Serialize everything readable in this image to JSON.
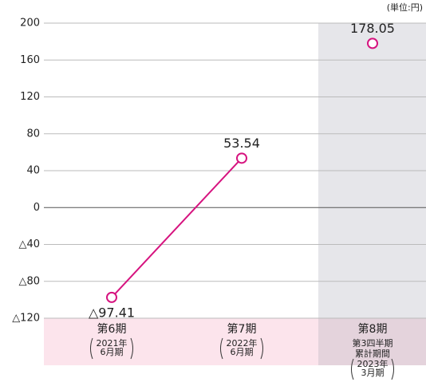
{
  "chart_data": {
    "type": "line",
    "unit": "(単位:円)",
    "categories": [
      "第6期",
      "第7期",
      "第8期"
    ],
    "category_details": [
      [
        "2021年",
        "6月期"
      ],
      [
        "2022年",
        "6月期"
      ],
      [
        "第3四半期",
        "累計期間",
        "2023年",
        "3月期"
      ]
    ],
    "shaded_categories": [
      "第8期"
    ],
    "values": [
      -97.41,
      53.54,
      178.05
    ],
    "value_labels": [
      "△97.41",
      "53.54",
      "178.05"
    ],
    "color": "#d6137f",
    "ylim": [
      -120,
      200
    ],
    "yticks": [
      {
        "value": -120,
        "label": "△120"
      },
      {
        "value": -80,
        "label": "△80"
      },
      {
        "value": -40,
        "label": "△40"
      },
      0,
      40,
      80,
      120,
      160,
      200
    ],
    "grid": true
  }
}
